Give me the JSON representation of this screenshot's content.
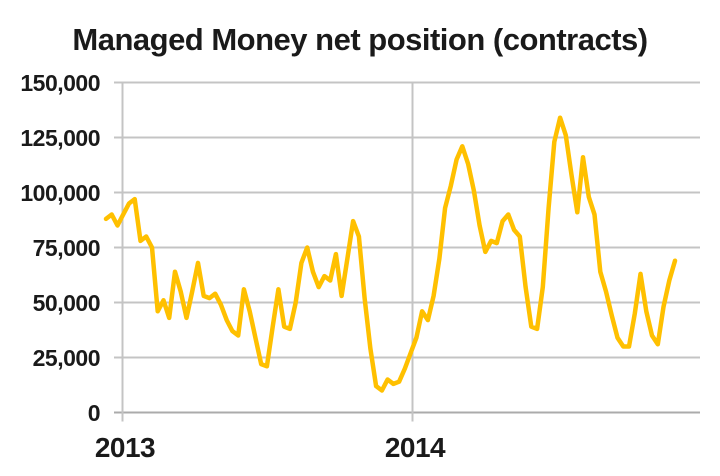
{
  "chart_data": {
    "type": "line",
    "title": "Managed Money net position (contracts)",
    "x_axis": {
      "tick_labels": [
        "2013",
        "2014"
      ]
    },
    "y_axis": {
      "tick_labels": [
        "150,000",
        "125,000",
        "100,000",
        "75,000",
        "50,000",
        "25,000",
        "0"
      ],
      "min": 0,
      "max": 150000,
      "tick_interval": 25000
    },
    "grid": true,
    "legend": false,
    "series": [
      {
        "name": "Managed Money net position",
        "color": "#FFC000",
        "values": [
          88000,
          90000,
          85000,
          90000,
          95000,
          97000,
          78000,
          80000,
          75000,
          46000,
          51000,
          43000,
          64000,
          55000,
          43000,
          55000,
          68000,
          53000,
          52000,
          54000,
          49000,
          42000,
          37000,
          35000,
          56000,
          46000,
          34000,
          22000,
          21000,
          39000,
          56000,
          39000,
          38000,
          50000,
          68000,
          75000,
          64000,
          57000,
          62000,
          60000,
          72000,
          53000,
          70000,
          87000,
          80000,
          52000,
          29000,
          12000,
          10000,
          15000,
          13000,
          14000,
          20000,
          27000,
          34000,
          46000,
          42000,
          53000,
          70000,
          93000,
          103000,
          115000,
          121000,
          113000,
          101000,
          85000,
          73000,
          78000,
          77000,
          87000,
          90000,
          83000,
          80000,
          57000,
          39000,
          38000,
          57000,
          93000,
          123000,
          134000,
          126000,
          108000,
          91000,
          116000,
          98000,
          90000,
          64000,
          55000,
          44000,
          34000,
          30000,
          30000,
          45000,
          63000,
          46000,
          35000,
          31000,
          48000,
          60000,
          69000
        ]
      }
    ]
  },
  "colors": {
    "line": "#FFC000",
    "grid": "#C4C4C4",
    "axis": "#ABABAB",
    "text": "#1A1A1A",
    "background": "#FFFFFF"
  }
}
